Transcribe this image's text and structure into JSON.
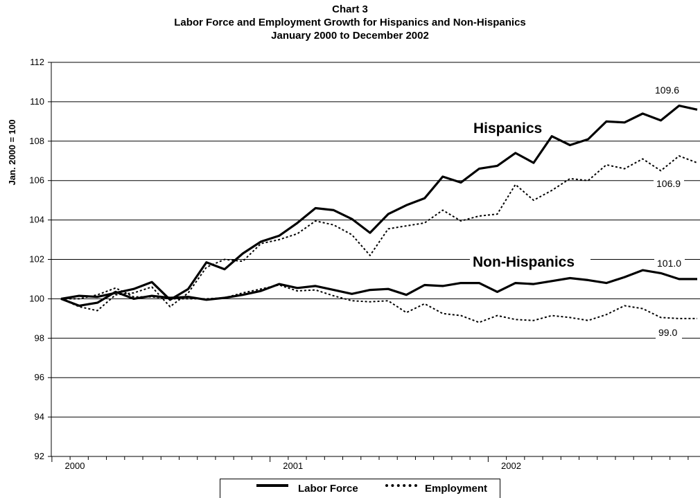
{
  "titles": {
    "line1": "Chart 3",
    "line2": "Labor Force and Employment Growth for Hispanics and Non-Hispanics",
    "line3": "January 2000 to December 2002"
  },
  "chart_data": {
    "type": "line",
    "title": "Chart 3",
    "subtitle": "Labor Force and Employment Growth for Hispanics and Non-Hispanics January 2000 to December 2002",
    "xlabel": "",
    "ylabel": "Jan. 2000 = 100",
    "ylim": [
      92,
      112
    ],
    "yticks": [
      92,
      94,
      96,
      98,
      100,
      102,
      104,
      106,
      108,
      110,
      112
    ],
    "x_tick_labels": [
      "2000",
      "2001",
      "2002"
    ],
    "x": [
      "2000-01",
      "2000-02",
      "2000-03",
      "2000-04",
      "2000-05",
      "2000-06",
      "2000-07",
      "2000-08",
      "2000-09",
      "2000-10",
      "2000-11",
      "2000-12",
      "2001-01",
      "2001-02",
      "2001-03",
      "2001-04",
      "2001-05",
      "2001-06",
      "2001-07",
      "2001-08",
      "2001-09",
      "2001-10",
      "2001-11",
      "2001-12",
      "2002-01",
      "2002-02",
      "2002-03",
      "2002-04",
      "2002-05",
      "2002-06",
      "2002-07",
      "2002-08",
      "2002-09",
      "2002-10",
      "2002-11",
      "2002-12"
    ],
    "grid": "horizontal",
    "series": [
      {
        "name": "Hispanics",
        "measure": "Labor Force",
        "style": "solid",
        "values": [
          100.0,
          100.15,
          100.1,
          100.3,
          100.5,
          100.85,
          99.95,
          100.5,
          101.85,
          101.5,
          102.3,
          102.9,
          103.2,
          103.85,
          104.6,
          104.5,
          104.05,
          103.35,
          104.3,
          104.75,
          105.1,
          106.2,
          105.9,
          106.6,
          106.75,
          107.4,
          106.9,
          108.25,
          107.8,
          108.1,
          109.0,
          108.95,
          109.4,
          109.05,
          109.8,
          109.6
        ]
      },
      {
        "name": "Hispanics",
        "measure": "Employment",
        "style": "dotted",
        "values": [
          100.0,
          99.6,
          99.4,
          100.2,
          100.3,
          100.6,
          99.6,
          100.3,
          101.6,
          102.0,
          101.9,
          102.8,
          103.0,
          103.3,
          103.95,
          103.75,
          103.25,
          102.2,
          103.55,
          103.7,
          103.85,
          104.5,
          103.95,
          104.2,
          104.3,
          105.8,
          105.0,
          105.5,
          106.1,
          106.0,
          106.8,
          106.6,
          107.1,
          106.5,
          107.25,
          106.9
        ]
      },
      {
        "name": "Non-Hispanics",
        "measure": "Labor Force",
        "style": "solid",
        "values": [
          100.0,
          99.65,
          99.8,
          100.35,
          100.0,
          100.15,
          100.05,
          100.1,
          99.95,
          100.05,
          100.2,
          100.4,
          100.75,
          100.55,
          100.65,
          100.45,
          100.25,
          100.45,
          100.5,
          100.2,
          100.7,
          100.65,
          100.8,
          100.8,
          100.35,
          100.8,
          100.75,
          100.9,
          101.05,
          100.95,
          100.8,
          101.1,
          101.45,
          101.3,
          101.0,
          101.0
        ]
      },
      {
        "name": "Non-Hispanics",
        "measure": "Employment",
        "style": "dotted",
        "values": [
          100.0,
          100.0,
          100.2,
          100.55,
          100.1,
          100.1,
          100.0,
          100.0,
          100.0,
          100.05,
          100.3,
          100.5,
          100.7,
          100.4,
          100.45,
          100.15,
          99.9,
          99.85,
          99.9,
          99.3,
          99.75,
          99.25,
          99.15,
          98.8,
          99.15,
          98.95,
          98.9,
          99.15,
          99.05,
          98.9,
          99.2,
          99.65,
          99.5,
          99.05,
          99.0,
          99.0
        ]
      }
    ],
    "annotations": [
      {
        "text": "Hispanics",
        "series": "Hispanics"
      },
      {
        "text": "Non-Hispanics",
        "series": "Non-Hispanics"
      },
      {
        "text": "109.6",
        "value": 109.6
      },
      {
        "text": "106.9",
        "value": 106.9
      },
      {
        "text": "101.0",
        "value": 101.0
      },
      {
        "text": "99.0",
        "value": 99.0
      }
    ],
    "legend": {
      "position": "bottom",
      "entries": [
        {
          "label": "Labor Force",
          "style": "solid"
        },
        {
          "label": "Employment",
          "style": "dotted"
        }
      ]
    }
  },
  "colors": {
    "line": "#000000",
    "grid": "#000000",
    "background": "#ffffff"
  }
}
